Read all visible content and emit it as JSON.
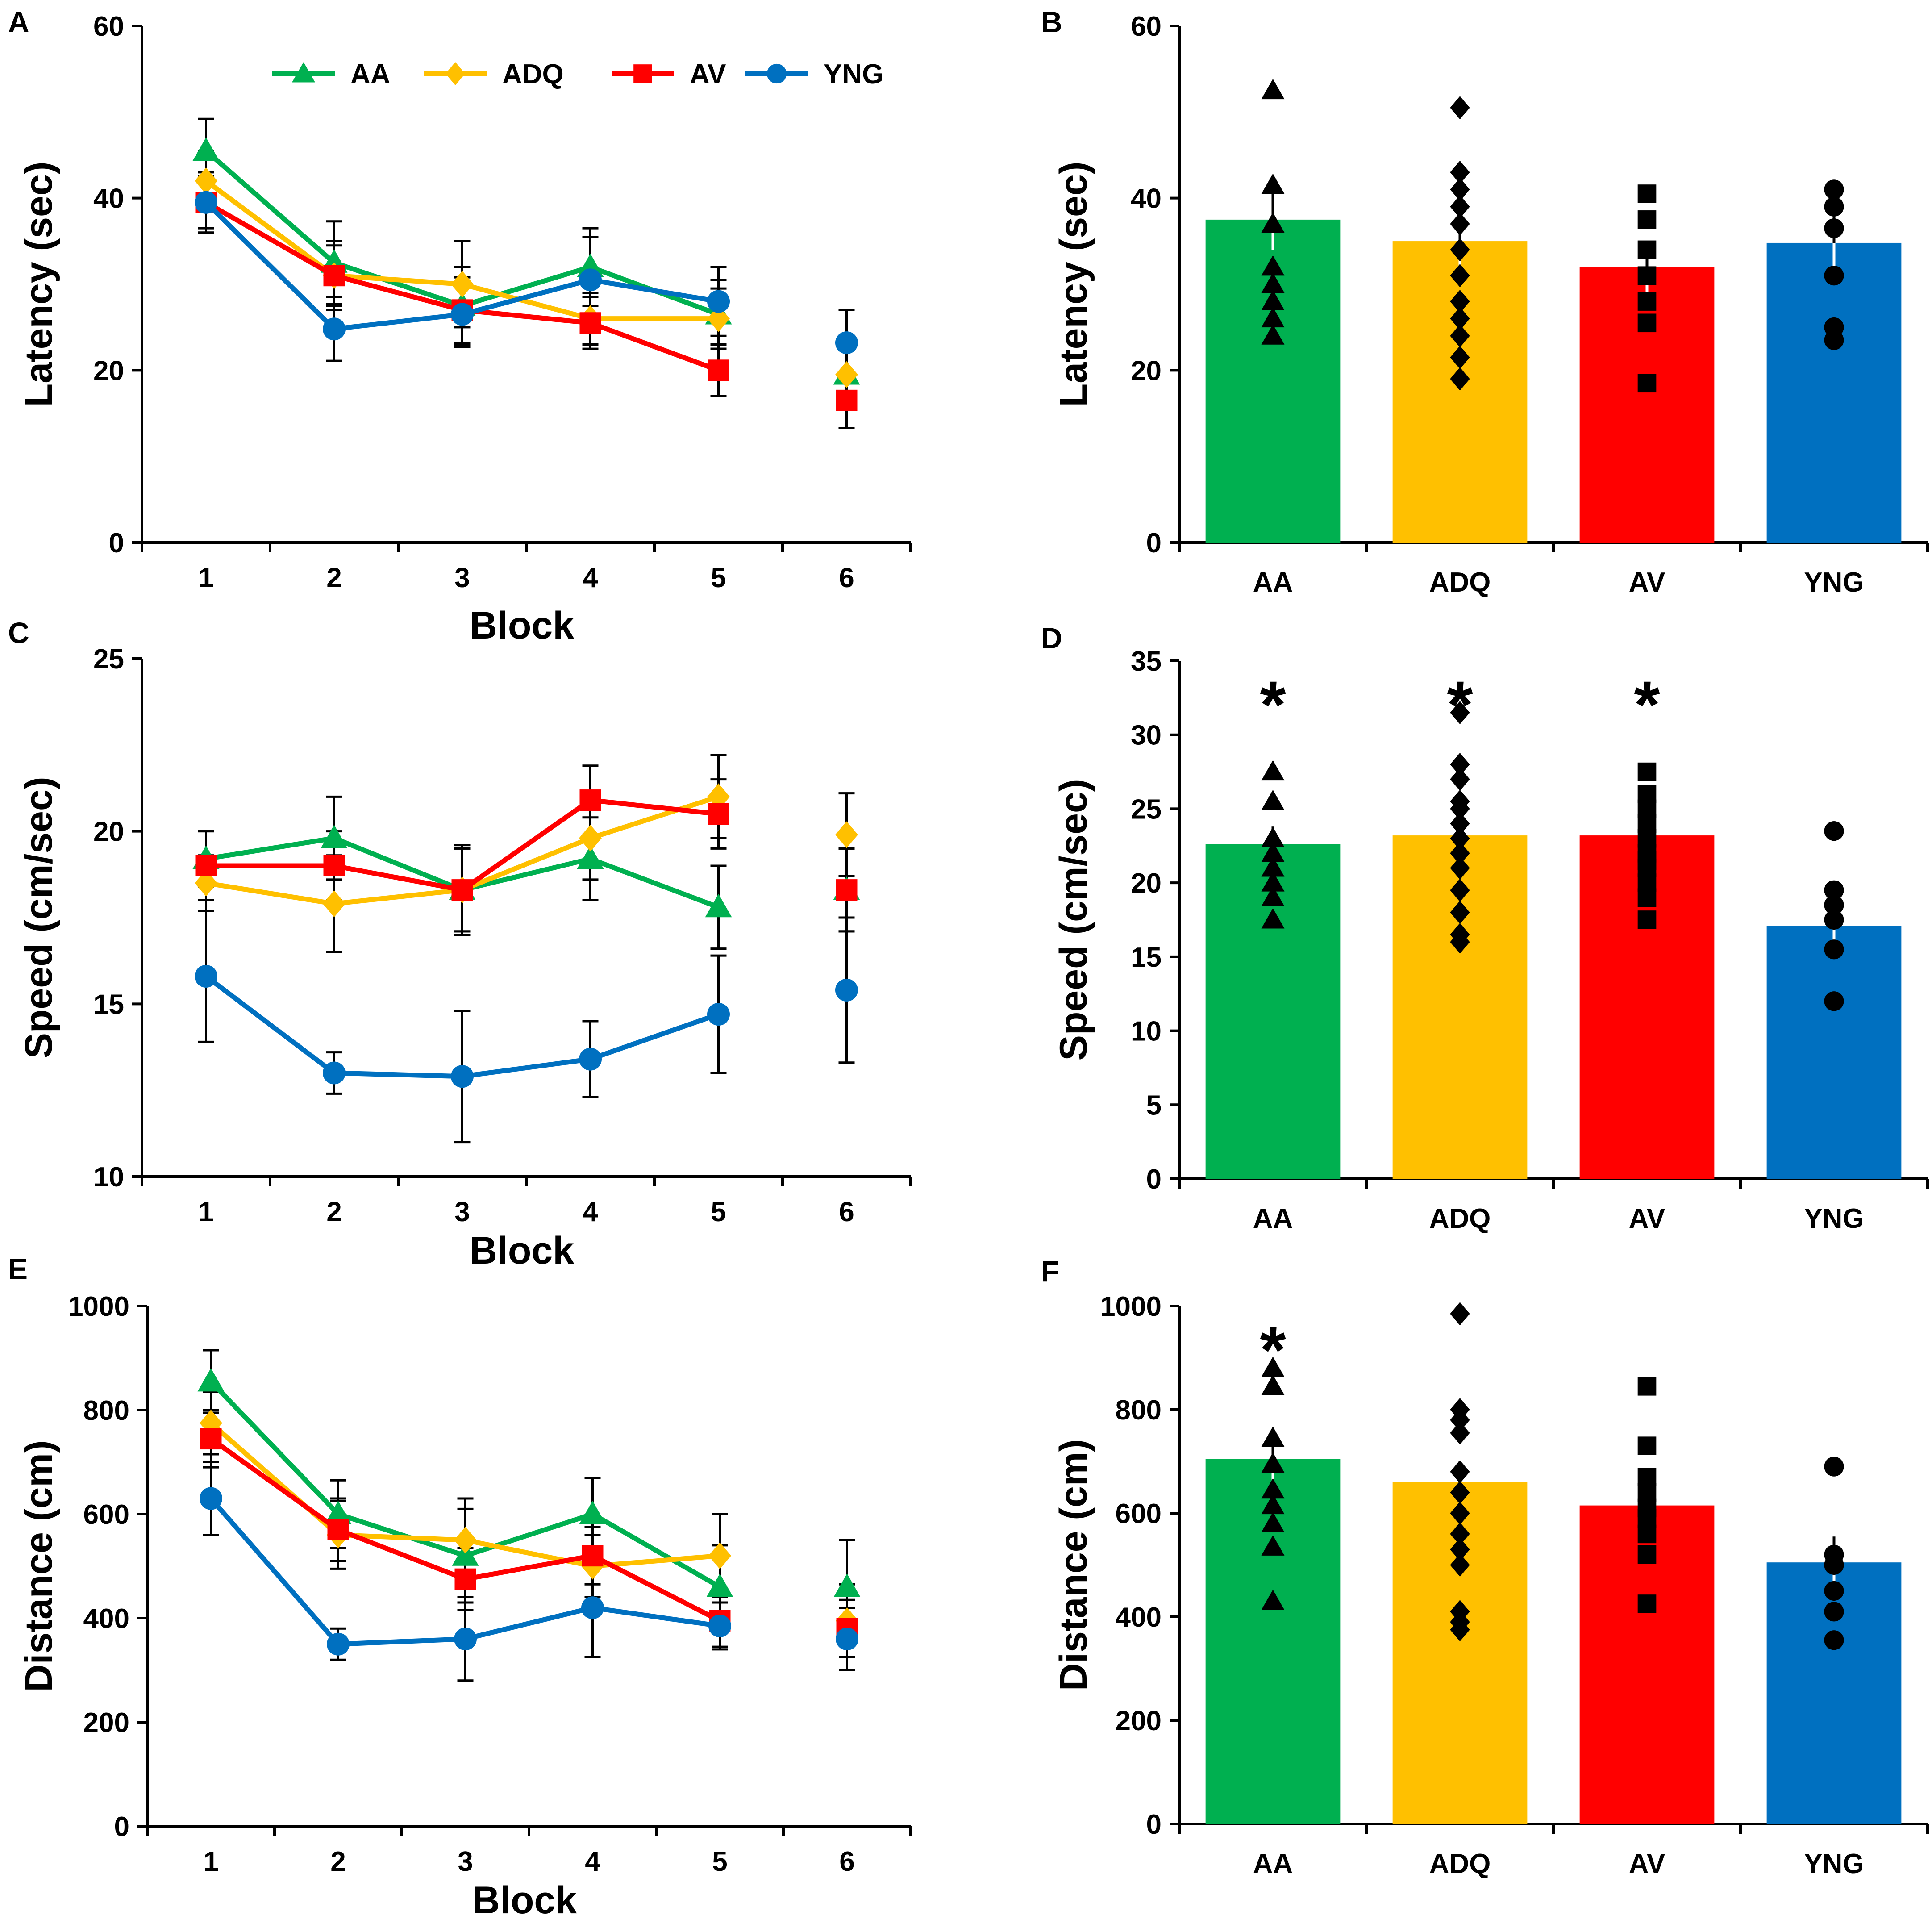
{
  "figure": {
    "groups": [
      "AA",
      "ADQ",
      "AV",
      "YNG"
    ],
    "colors": {
      "AA": "#00b050",
      "ADQ": "#ffc000",
      "AV": "#ff0000",
      "YNG": "#0070c0",
      "axis": "#000000",
      "points": "#000000"
    },
    "markers": {
      "AA": "triangle",
      "ADQ": "diamond",
      "AV": "square",
      "YNG": "circle"
    },
    "legend": {
      "placement": "top",
      "entries": [
        "AA",
        "ADQ",
        "AV",
        "YNG"
      ]
    }
  },
  "chart_data": [
    {
      "panel": "A",
      "type": "line",
      "title": "",
      "xlabel": "Block",
      "ylabel": "Latency (sec)",
      "xlim": [
        0.5,
        6.5
      ],
      "ylim": [
        0,
        60
      ],
      "yticks": [
        0,
        20,
        40,
        60
      ],
      "x": [
        1,
        2,
        3,
        4,
        5,
        6
      ],
      "connected_upto": 5,
      "series": [
        {
          "name": "AA",
          "values": [
            45.5,
            32.5,
            27.5,
            32,
            26.5,
            19.5
          ],
          "errors": [
            3.7,
            4.8,
            4.5,
            4.5,
            4,
            4
          ]
        },
        {
          "name": "ADQ",
          "values": [
            42,
            31,
            30,
            26,
            26,
            19.5
          ],
          "errors": [
            3.5,
            4,
            5,
            3,
            3.5,
            4
          ]
        },
        {
          "name": "AV",
          "values": [
            39.5,
            31,
            27,
            25.5,
            20,
            16.5
          ],
          "errors": [
            3.5,
            3.5,
            3.8,
            3,
            3,
            3.2
          ]
        },
        {
          "name": "YNG",
          "values": [
            39.5,
            24.8,
            26.5,
            30.5,
            28,
            23.2
          ],
          "errors": [
            3,
            3.7,
            3.8,
            5,
            4,
            3.8
          ]
        }
      ]
    },
    {
      "panel": "B",
      "type": "bar",
      "title": "",
      "xlabel": "",
      "ylabel": "Latency (sec)",
      "ylim": [
        0,
        60
      ],
      "yticks": [
        0,
        20,
        40,
        60
      ],
      "categories": [
        "AA",
        "ADQ",
        "AV",
        "YNG"
      ],
      "values": [
        37.5,
        35,
        32,
        34.8
      ],
      "errors": [
        3.5,
        3,
        3,
        3.5
      ],
      "points": [
        [
          52.5,
          41.5,
          37,
          32,
          30,
          28,
          26,
          24
        ],
        [
          50.5,
          43,
          41,
          39,
          37,
          34,
          31,
          28,
          26,
          24,
          21.5,
          19
        ],
        [
          40.5,
          37.5,
          34,
          31,
          28,
          25.5,
          18.5
        ],
        [
          41,
          39,
          36.5,
          31,
          25,
          23.5
        ]
      ],
      "significance": []
    },
    {
      "panel": "C",
      "type": "line",
      "title": "",
      "xlabel": "Block",
      "ylabel": "Speed (cm/sec)",
      "xlim": [
        0.5,
        6.5
      ],
      "ylim": [
        10,
        25
      ],
      "yticks": [
        10,
        15,
        20,
        25
      ],
      "x": [
        1,
        2,
        3,
        4,
        5,
        6
      ],
      "connected_upto": 5,
      "series": [
        {
          "name": "AA",
          "values": [
            19.2,
            19.8,
            18.3,
            19.2,
            17.8,
            18.3
          ],
          "errors": [
            0.8,
            1.2,
            1.2,
            1.2,
            1.2,
            1.2
          ]
        },
        {
          "name": "ADQ",
          "values": [
            18.5,
            17.9,
            18.3,
            19.8,
            21,
            19.9
          ],
          "errors": [
            0.8,
            1.4,
            1.2,
            1.2,
            1.2,
            1.2
          ]
        },
        {
          "name": "AV",
          "values": [
            19,
            19,
            18.3,
            20.9,
            20.5,
            18.3
          ],
          "errors": [
            1,
            1,
            1.3,
            1,
            1,
            1.2
          ]
        },
        {
          "name": "YNG",
          "values": [
            15.8,
            13,
            12.9,
            13.4,
            14.7,
            15.4
          ],
          "errors": [
            1.9,
            0.6,
            1.9,
            1.1,
            1.7,
            2.1
          ]
        }
      ]
    },
    {
      "panel": "D",
      "type": "bar",
      "title": "",
      "xlabel": "",
      "ylabel": "Speed (cm/sec)",
      "ylim": [
        0,
        35
      ],
      "yticks": [
        0,
        5,
        10,
        15,
        20,
        25,
        30,
        35
      ],
      "categories": [
        "AA",
        "ADQ",
        "AV",
        "YNG"
      ],
      "values": [
        22.6,
        23.2,
        23.2,
        17.1
      ],
      "errors": [
        1.2,
        1.1,
        1.1,
        1.4
      ],
      "points": [
        [
          27.5,
          25.5,
          23,
          22,
          21,
          20,
          19,
          17.5
        ],
        [
          31.5,
          28,
          27,
          25.5,
          25,
          24,
          23,
          22,
          21,
          19.5,
          18,
          16.5,
          16
        ],
        [
          27.5,
          26,
          25,
          24,
          23,
          22,
          21.5,
          21,
          20,
          19,
          17.5
        ],
        [
          23.5,
          19.5,
          18.5,
          17.5,
          15.5,
          12
        ]
      ],
      "significance": [
        "*",
        "*",
        "*",
        ""
      ]
    },
    {
      "panel": "E",
      "type": "line",
      "title": "",
      "xlabel": "Block",
      "ylabel": "Distance (cm)",
      "xlim": [
        0.5,
        6.5
      ],
      "ylim": [
        0,
        1000
      ],
      "yticks": [
        0,
        200,
        400,
        600,
        800,
        1000
      ],
      "x": [
        1,
        2,
        3,
        4,
        5,
        6
      ],
      "connected_upto": 5,
      "series": [
        {
          "name": "AA",
          "values": [
            855,
            600,
            520,
            600,
            460,
            460
          ],
          "errors": [
            60,
            65,
            90,
            70,
            80,
            90
          ]
        },
        {
          "name": "ADQ",
          "values": [
            775,
            560,
            550,
            500,
            520,
            395
          ],
          "errors": [
            60,
            65,
            80,
            60,
            80,
            70
          ]
        },
        {
          "name": "AV",
          "values": [
            745,
            570,
            475,
            520,
            395,
            380
          ],
          "errors": [
            55,
            60,
            60,
            55,
            50,
            55
          ]
        },
        {
          "name": "YNG",
          "values": [
            630,
            350,
            360,
            420,
            385,
            360
          ],
          "errors": [
            70,
            30,
            80,
            95,
            45,
            60
          ]
        }
      ]
    },
    {
      "panel": "F",
      "type": "bar",
      "title": "",
      "xlabel": "",
      "ylabel": "Distance (cm)",
      "ylim": [
        0,
        1000
      ],
      "yticks": [
        0,
        200,
        400,
        600,
        800,
        1000
      ],
      "categories": [
        "AA",
        "ADQ",
        "AV",
        "YNG"
      ],
      "values": [
        705,
        660,
        615,
        505
      ],
      "errors": [
        40,
        40,
        40,
        50
      ],
      "points": [
        [
          880,
          845,
          745,
          695,
          645,
          615,
          580,
          535,
          430
        ],
        [
          985,
          800,
          780,
          755,
          680,
          640,
          600,
          560,
          530,
          500,
          410,
          390,
          375
        ],
        [
          845,
          730,
          670,
          640,
          610,
          590,
          560,
          520,
          425
        ],
        [
          690,
          520,
          500,
          450,
          410,
          355
        ]
      ],
      "significance": [
        "*",
        "",
        "",
        ""
      ]
    }
  ]
}
